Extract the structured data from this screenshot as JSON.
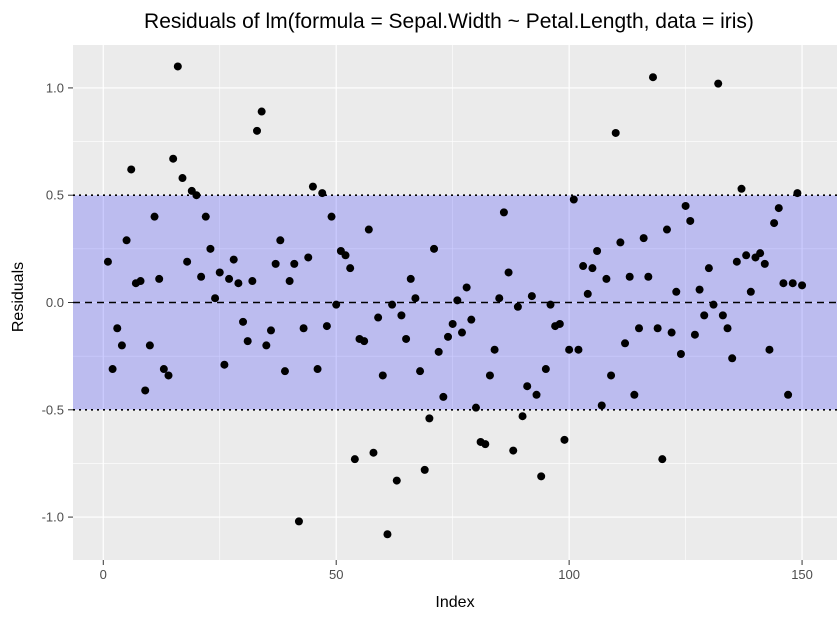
{
  "colors": {
    "panel": "#ebebeb",
    "grid_major": "#ffffff",
    "band": "#0000ff",
    "point": "#000000",
    "line": "#000000",
    "tick": "#333333"
  },
  "chart_data": {
    "type": "scatter",
    "title": "Residuals of lm(formula = Sepal.Width ~ Petal.Length, data = iris)",
    "xlabel": "Index",
    "ylabel": "Residuals",
    "xlim": [
      -6.5,
      157.5
    ],
    "ylim": [
      -1.2,
      1.2
    ],
    "x_ticks": [
      0,
      50,
      100,
      150
    ],
    "x_tick_labels": [
      "0",
      "50",
      "100",
      "150"
    ],
    "y_ticks": [
      -1.0,
      -0.5,
      0.0,
      0.5,
      1.0
    ],
    "y_tick_labels": [
      "-1.0",
      "-0.5",
      "0.0",
      "0.5",
      "1.0"
    ],
    "band": {
      "lower": -0.5,
      "upper": 0.5,
      "opacity": 0.2
    },
    "reference_lines": [
      {
        "y": 0.0,
        "style": "dashed"
      },
      {
        "y": 0.5,
        "style": "dotted"
      },
      {
        "y": -0.5,
        "style": "dotted"
      }
    ],
    "grid": true,
    "x": [
      1,
      2,
      3,
      4,
      5,
      6,
      7,
      8,
      9,
      10,
      11,
      12,
      13,
      14,
      15,
      16,
      17,
      18,
      19,
      20,
      21,
      22,
      23,
      24,
      25,
      26,
      27,
      28,
      29,
      30,
      31,
      32,
      33,
      34,
      35,
      36,
      37,
      38,
      39,
      40,
      41,
      42,
      43,
      44,
      45,
      46,
      47,
      48,
      49,
      50,
      51,
      52,
      53,
      54,
      55,
      56,
      57,
      58,
      59,
      60,
      61,
      62,
      63,
      64,
      65,
      66,
      67,
      68,
      69,
      70,
      71,
      72,
      73,
      74,
      75,
      76,
      77,
      78,
      79,
      80,
      81,
      82,
      83,
      84,
      85,
      86,
      87,
      88,
      89,
      90,
      91,
      92,
      93,
      94,
      95,
      96,
      97,
      98,
      99,
      100,
      101,
      102,
      103,
      104,
      105,
      106,
      107,
      108,
      109,
      110,
      111,
      112,
      113,
      114,
      115,
      116,
      117,
      118,
      119,
      120,
      121,
      122,
      123,
      124,
      125,
      126,
      127,
      128,
      129,
      130,
      131,
      132,
      133,
      134,
      135,
      136,
      137,
      138,
      139,
      140,
      141,
      142,
      143,
      144,
      145,
      146,
      147,
      148,
      149,
      150
    ],
    "y": [
      0.19,
      -0.31,
      -0.12,
      -0.2,
      0.29,
      0.62,
      0.09,
      0.1,
      -0.41,
      -0.2,
      0.4,
      0.11,
      -0.31,
      -0.34,
      0.67,
      1.1,
      0.58,
      0.19,
      0.52,
      0.5,
      0.12,
      0.4,
      0.25,
      0.02,
      0.14,
      -0.29,
      0.11,
      0.2,
      0.09,
      -0.09,
      -0.18,
      0.1,
      0.8,
      0.89,
      -0.2,
      -0.13,
      0.18,
      0.29,
      -0.32,
      0.1,
      0.18,
      -1.02,
      -0.12,
      0.21,
      0.54,
      -0.31,
      0.51,
      -0.11,
      0.4,
      -0.01,
      0.24,
      0.22,
      0.16,
      -0.73,
      -0.17,
      -0.18,
      0.34,
      -0.7,
      -0.07,
      -0.34,
      -1.08,
      -0.01,
      -0.83,
      -0.06,
      -0.17,
      0.11,
      0.02,
      -0.32,
      -0.78,
      -0.54,
      0.25,
      -0.23,
      -0.44,
      -0.16,
      -0.1,
      0.01,
      -0.14,
      0.07,
      -0.08,
      -0.49,
      -0.65,
      -0.66,
      -0.34,
      -0.22,
      0.02,
      0.42,
      0.14,
      -0.69,
      -0.02,
      -0.53,
      -0.39,
      0.03,
      -0.43,
      -0.81,
      -0.31,
      -0.01,
      -0.11,
      -0.1,
      -0.64,
      -0.22,
      0.48,
      -0.22,
      0.17,
      0.04,
      0.16,
      0.24,
      -0.48,
      0.11,
      -0.34,
      0.79,
      0.28,
      -0.19,
      0.12,
      -0.43,
      -0.12,
      0.3,
      0.12,
      1.05,
      -0.12,
      -0.73,
      0.34,
      -0.14,
      0.05,
      -0.24,
      0.45,
      0.38,
      -0.15,
      0.06,
      -0.06,
      0.16,
      -0.01,
      1.02,
      -0.06,
      -0.12,
      -0.26,
      0.19,
      0.53,
      0.22,
      0.05,
      0.21,
      0.23,
      0.18,
      -0.22,
      0.37,
      0.44,
      0.09,
      -0.43,
      0.09,
      0.51,
      0.08
    ]
  }
}
